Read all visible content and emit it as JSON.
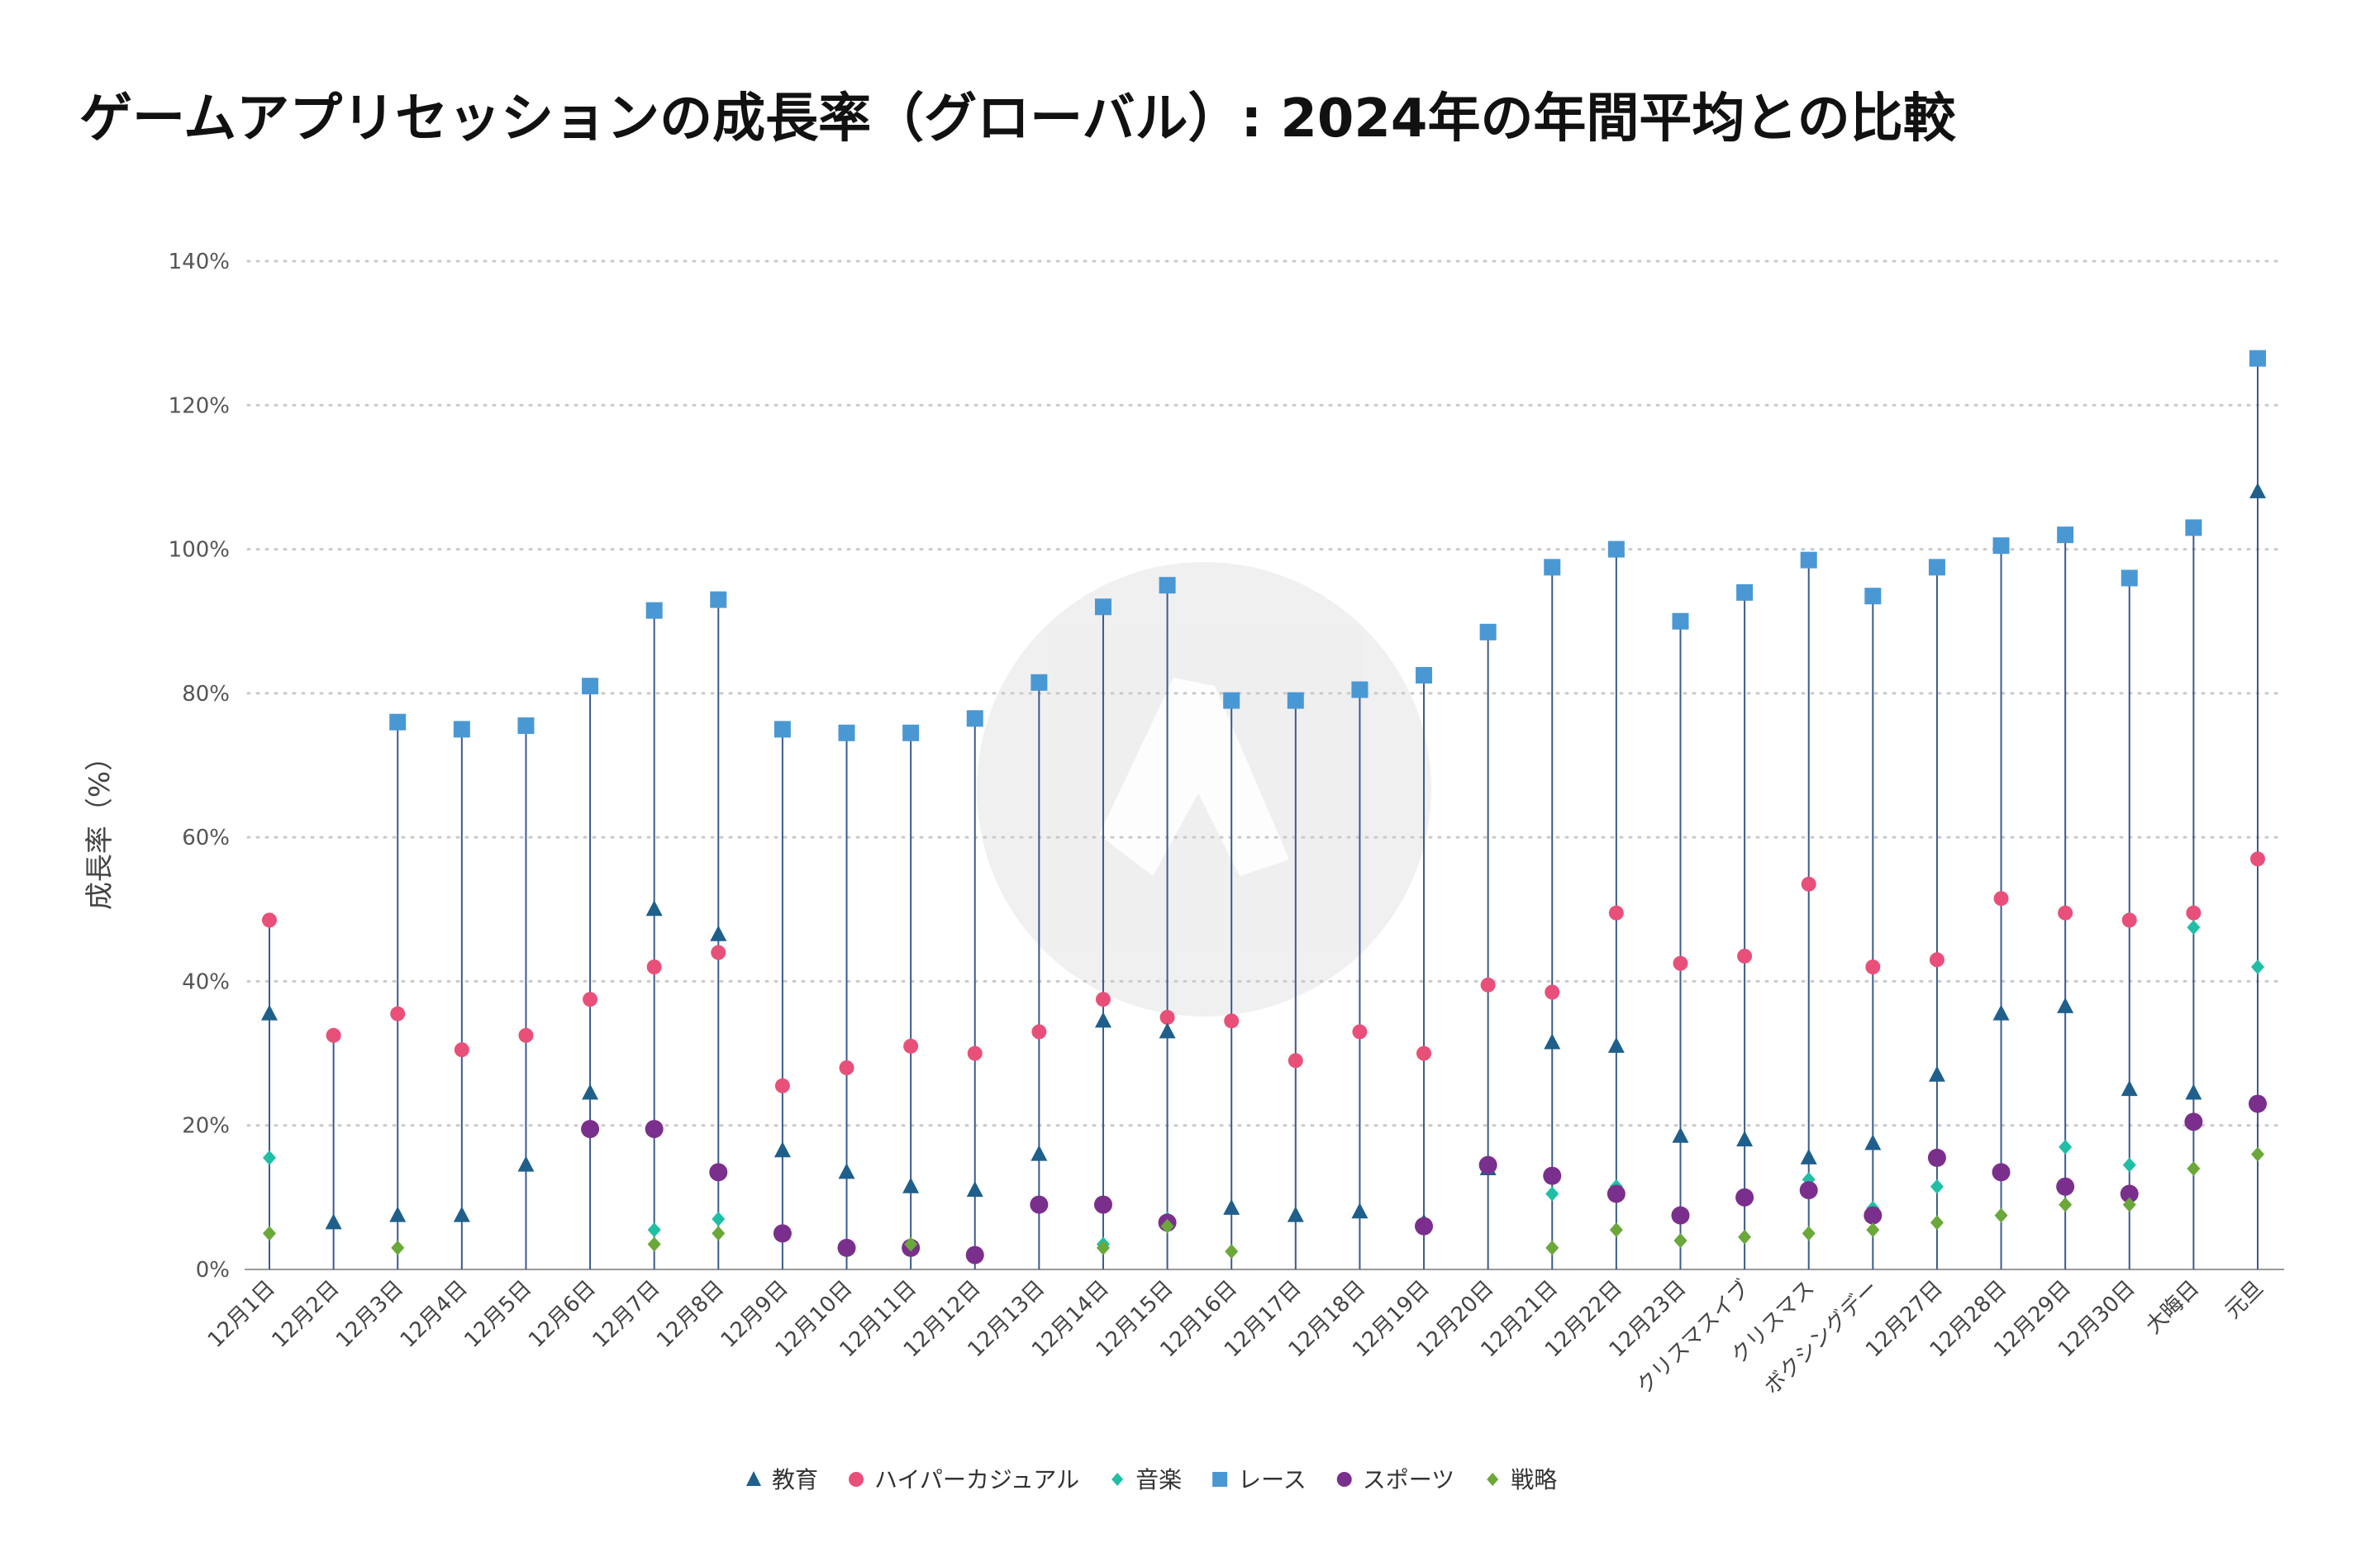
{
  "chart_data": {
    "type": "scatter",
    "title": "ゲームアプリセッションの成長率（グローバル）: 2024年の年間平均との比較",
    "ylabel": "成長率（%）",
    "xlabel": "",
    "ylim": [
      0,
      140
    ],
    "yticks": [
      0,
      20,
      40,
      60,
      80,
      100,
      120,
      140
    ],
    "ytick_labels": [
      "0%",
      "20%",
      "40%",
      "60%",
      "80%",
      "100%",
      "120%",
      "140%"
    ],
    "grid": "horizontal dotted",
    "legend_position": "bottom-center",
    "categories": [
      "12月1日",
      "12月2日",
      "12月3日",
      "12月4日",
      "12月5日",
      "12月6日",
      "12月7日",
      "12月8日",
      "12月9日",
      "12月10日",
      "12月11日",
      "12月12日",
      "12月13日",
      "12月14日",
      "12月15日",
      "12月16日",
      "12月17日",
      "12月18日",
      "12月19日",
      "12月20日",
      "12月21日",
      "12月22日",
      "12月23日",
      "クリスマスイブ",
      "クリスマス",
      "ボクシングデー",
      "12月27日",
      "12月28日",
      "12月29日",
      "12月30日",
      "大晦日",
      "元旦"
    ],
    "series": [
      {
        "name": "教育",
        "marker": "triangle",
        "color": "#1f5f8b",
        "values": [
          35.5,
          6.5,
          7.5,
          7.5,
          14.5,
          24.5,
          50,
          46.5,
          16.5,
          13.5,
          11.5,
          11,
          16,
          34.5,
          33,
          8.5,
          7.5,
          8,
          6.5,
          14,
          31.5,
          31,
          18.5,
          18,
          15.5,
          17.5,
          27,
          35.5,
          36.5,
          25,
          24.5,
          108
        ]
      },
      {
        "name": "ハイパーカジュアル",
        "marker": "circle",
        "color": "#e8507a",
        "values": [
          48.5,
          32.5,
          35.5,
          30.5,
          32.5,
          37.5,
          42,
          44,
          25.5,
          28,
          31,
          30,
          33,
          37.5,
          35,
          34.5,
          29,
          33,
          30,
          39.5,
          38.5,
          49.5,
          42.5,
          43.5,
          53.5,
          42,
          43,
          51.5,
          49.5,
          48.5,
          49.5,
          57
        ]
      },
      {
        "name": "音楽",
        "marker": "diamond",
        "color": "#1fbfa6",
        "values": [
          15.5,
          null,
          null,
          null,
          null,
          null,
          5.5,
          7,
          null,
          null,
          null,
          null,
          null,
          3.5,
          7,
          null,
          null,
          null,
          null,
          null,
          10.5,
          11.5,
          4,
          null,
          12.5,
          8.5,
          11.5,
          null,
          17,
          14.5,
          47.5,
          42
        ]
      },
      {
        "name": "レース",
        "marker": "square",
        "color": "#4a98d3",
        "values": [
          null,
          null,
          76,
          75,
          75.5,
          81,
          91.5,
          93,
          75,
          74.5,
          74.5,
          76.5,
          81.5,
          92,
          95,
          79,
          79,
          80.5,
          82.5,
          88.5,
          97.5,
          100,
          90,
          94,
          98.5,
          93.5,
          97.5,
          100.5,
          102,
          96,
          103,
          126.5
        ]
      },
      {
        "name": "スポーツ",
        "marker": "circle",
        "color": "#7b2f8c",
        "values": [
          null,
          null,
          null,
          null,
          null,
          19.5,
          19.5,
          13.5,
          5,
          3,
          3,
          2,
          9,
          9,
          6.5,
          null,
          null,
          null,
          6,
          14.5,
          13,
          10.5,
          7.5,
          10,
          11,
          7.5,
          15.5,
          13.5,
          11.5,
          10.5,
          20.5,
          23
        ]
      },
      {
        "name": "戦略",
        "marker": "diamond",
        "color": "#6aa83a",
        "values": [
          5,
          null,
          3,
          null,
          null,
          null,
          3.5,
          5,
          null,
          null,
          3.5,
          null,
          null,
          3,
          6,
          2.5,
          null,
          null,
          null,
          null,
          3,
          5.5,
          4,
          4.5,
          5,
          5.5,
          6.5,
          7.5,
          9,
          9,
          14,
          16
        ]
      }
    ]
  }
}
